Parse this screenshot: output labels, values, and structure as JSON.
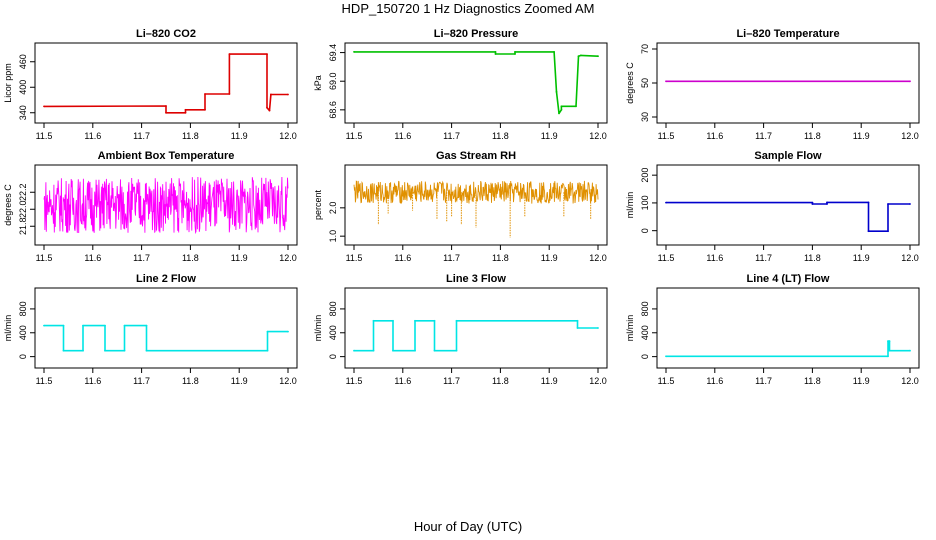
{
  "figure": {
    "title": "HDP_150720  1 Hz Diagnostics Zoomed AM",
    "xlabel": "Hour of Day (UTC)"
  },
  "chart_data": [
    {
      "id": "co2",
      "type": "line",
      "title": "Li–820 CO2",
      "ylabel": "Licor ppm",
      "color": "#dd0000",
      "xlim": [
        11.5,
        12.0
      ],
      "ylim": [
        330,
        490
      ],
      "xticks": [
        "11.5",
        "11.6",
        "11.7",
        "11.8",
        "11.9",
        "12.0"
      ],
      "yticks": [
        {
          "v": 340,
          "label": "340"
        },
        {
          "v": 400,
          "label": "400"
        },
        {
          "v": 460,
          "label": "460"
        }
      ],
      "series": [
        {
          "name": "CO2",
          "x": [
            11.5,
            11.75,
            11.75,
            11.79,
            11.79,
            11.83,
            11.83,
            11.88,
            11.88,
            11.957,
            11.957,
            11.962,
            11.965,
            11.965,
            12.0
          ],
          "y": [
            355,
            356,
            340,
            340,
            347,
            347,
            384,
            384,
            478,
            478,
            352,
            345,
            383,
            383,
            383
          ]
        }
      ]
    },
    {
      "id": "pressure",
      "type": "line",
      "title": "Li–820 Pressure",
      "ylabel": "kPa",
      "color": "#00c000",
      "xlim": [
        11.5,
        12.0
      ],
      "ylim": [
        68.5,
        69.45
      ],
      "xticks": [
        "11.5",
        "11.6",
        "11.7",
        "11.8",
        "11.9",
        "12.0"
      ],
      "yticks": [
        {
          "v": 68.6,
          "label": "68.6"
        },
        {
          "v": 69.0,
          "label": "69.0"
        },
        {
          "v": 69.4,
          "label": "69.4"
        }
      ],
      "series": [
        {
          "name": "Pressure",
          "x": [
            11.5,
            11.79,
            11.79,
            11.83,
            11.83,
            11.91,
            11.915,
            11.92,
            11.925,
            11.925,
            11.955,
            11.96,
            11.965,
            12.0
          ],
          "y": [
            69.41,
            69.41,
            69.38,
            69.38,
            69.41,
            69.41,
            68.85,
            68.55,
            68.6,
            68.65,
            68.65,
            69.35,
            69.36,
            69.35
          ]
        }
      ]
    },
    {
      "id": "temperature",
      "type": "line",
      "title": "Li–820 Temperature",
      "ylabel": "degrees C",
      "color": "#cc00cc",
      "xlim": [
        11.5,
        12.0
      ],
      "ylim": [
        30,
        70
      ],
      "xticks": [
        "11.5",
        "11.6",
        "11.7",
        "11.8",
        "11.9",
        "12.0"
      ],
      "yticks": [
        {
          "v": 30,
          "label": "30"
        },
        {
          "v": 50,
          "label": "50"
        },
        {
          "v": 70,
          "label": "70"
        }
      ],
      "series": [
        {
          "name": "Temperature",
          "x": [
            11.5,
            12.0
          ],
          "y": [
            51,
            51
          ]
        }
      ]
    },
    {
      "id": "ambient",
      "type": "line",
      "title": "Ambient Box Temperature",
      "ylabel": "degrees C",
      "color": "#ff00ff",
      "noise": true,
      "xlim": [
        11.5,
        12.0
      ],
      "ylim": [
        21.65,
        22.45
      ],
      "xticks": [
        "11.5",
        "11.6",
        "11.7",
        "11.8",
        "11.9",
        "12.0"
      ],
      "yticks": [
        {
          "v": 21.8,
          "label": "21.8"
        },
        {
          "v": 22.0,
          "label": "22.0"
        },
        {
          "v": 22.2,
          "label": "22.2"
        }
      ],
      "series": [
        {
          "name": "Ambient",
          "x": [
            11.5,
            12.0
          ],
          "y": [
            22.05,
            22.05
          ],
          "spread": [
            21.72,
            22.38
          ]
        }
      ]
    },
    {
      "id": "rh",
      "type": "line",
      "title": "Gas Stream RH",
      "ylabel": "percent",
      "color": "#e09000",
      "noise": true,
      "xlim": [
        11.5,
        12.0
      ],
      "ylim": [
        0.9,
        3.3
      ],
      "xticks": [
        "11.5",
        "11.6",
        "11.7",
        "11.8",
        "11.9",
        "12.0"
      ],
      "yticks": [
        {
          "v": 1.0,
          "label": "1.0"
        },
        {
          "v": 2.0,
          "label": "2.0"
        }
      ],
      "series": [
        {
          "name": "RH",
          "x": [
            11.5,
            12.0
          ],
          "y": [
            2.55,
            2.55
          ],
          "spread": [
            2.15,
            2.95
          ],
          "dips": [
            [
              11.55,
              1.4
            ],
            [
              11.57,
              1.8
            ],
            [
              11.62,
              1.9
            ],
            [
              11.67,
              1.6
            ],
            [
              11.69,
              1.5
            ],
            [
              11.7,
              1.7
            ],
            [
              11.72,
              1.4
            ],
            [
              11.75,
              1.3
            ],
            [
              11.82,
              0.95
            ],
            [
              11.85,
              1.7
            ],
            [
              11.93,
              1.7
            ],
            [
              11.985,
              1.6
            ]
          ]
        }
      ]
    },
    {
      "id": "sample",
      "type": "line",
      "title": "Sample Flow",
      "ylabel": "ml/min",
      "color": "#0000cc",
      "xlim": [
        11.5,
        12.0
      ],
      "ylim": [
        -30,
        215
      ],
      "xticks": [
        "11.5",
        "11.6",
        "11.7",
        "11.8",
        "11.9",
        "12.0"
      ],
      "yticks": [
        {
          "v": 0,
          "label": "0"
        },
        {
          "v": 100,
          "label": "100"
        },
        {
          "v": 200,
          "label": "200"
        }
      ],
      "series": [
        {
          "name": "Sample",
          "x": [
            11.5,
            11.8,
            11.8,
            11.83,
            11.83,
            11.915,
            11.915,
            11.955,
            11.955,
            12.0
          ],
          "y": [
            101,
            101,
            96,
            96,
            102,
            102,
            -2,
            -2,
            96,
            96
          ]
        }
      ]
    },
    {
      "id": "line2",
      "type": "line",
      "title": "Line 2 Flow",
      "ylabel": "ml/min",
      "color": "#00e5e5",
      "xlim": [
        11.5,
        12.0
      ],
      "ylim": [
        -90,
        1050
      ],
      "xticks": [
        "11.5",
        "11.6",
        "11.7",
        "11.8",
        "11.9",
        "12.0"
      ],
      "yticks": [
        {
          "v": 0,
          "label": "0"
        },
        {
          "v": 400,
          "label": "400"
        },
        {
          "v": 800,
          "label": "800"
        }
      ],
      "series": [
        {
          "name": "Line 2",
          "x": [
            11.5,
            11.54,
            11.54,
            11.58,
            11.58,
            11.625,
            11.625,
            11.665,
            11.665,
            11.71,
            11.71,
            11.958,
            11.958,
            12.0
          ],
          "y": [
            520,
            520,
            100,
            100,
            520,
            520,
            100,
            100,
            520,
            520,
            100,
            100,
            420,
            420
          ]
        }
      ]
    },
    {
      "id": "line3",
      "type": "line",
      "title": "Line 3 Flow",
      "ylabel": "ml/min",
      "color": "#00e5e5",
      "xlim": [
        11.5,
        12.0
      ],
      "ylim": [
        -90,
        1050
      ],
      "xticks": [
        "11.5",
        "11.6",
        "11.7",
        "11.8",
        "11.9",
        "12.0"
      ],
      "yticks": [
        {
          "v": 0,
          "label": "0"
        },
        {
          "v": 400,
          "label": "400"
        },
        {
          "v": 800,
          "label": "800"
        }
      ],
      "series": [
        {
          "name": "Line 3",
          "x": [
            11.5,
            11.54,
            11.54,
            11.58,
            11.58,
            11.625,
            11.625,
            11.665,
            11.665,
            11.71,
            11.71,
            11.958,
            11.958,
            12.0
          ],
          "y": [
            100,
            100,
            600,
            600,
            100,
            100,
            600,
            600,
            100,
            100,
            600,
            600,
            480,
            480
          ]
        }
      ]
    },
    {
      "id": "line4",
      "type": "line",
      "title": "Line 4 (LT) Flow",
      "ylabel": "ml/min",
      "color": "#00e5e5",
      "xlim": [
        11.5,
        12.0
      ],
      "ylim": [
        -90,
        1050
      ],
      "xticks": [
        "11.5",
        "11.6",
        "11.7",
        "11.8",
        "11.9",
        "12.0"
      ],
      "yticks": [
        {
          "v": 0,
          "label": "0"
        },
        {
          "v": 400,
          "label": "400"
        },
        {
          "v": 800,
          "label": "800"
        }
      ],
      "series": [
        {
          "name": "Line 4",
          "x": [
            11.5,
            11.955,
            11.955,
            11.958,
            11.958,
            12.0
          ],
          "y": [
            5,
            5,
            260,
            260,
            100,
            100
          ]
        }
      ]
    }
  ]
}
